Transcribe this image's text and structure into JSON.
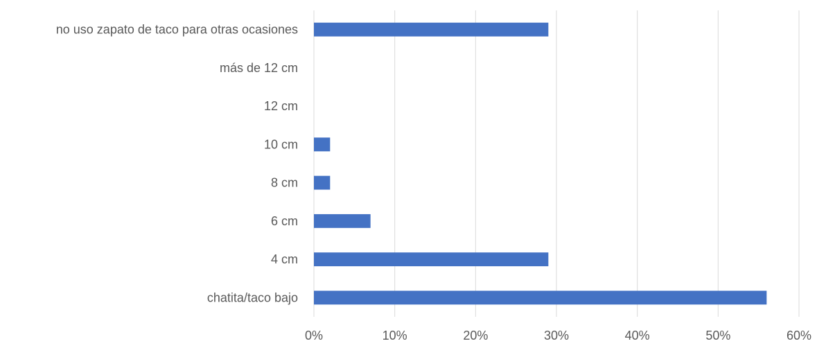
{
  "colors": {
    "bar": "#4472C4",
    "grid": "#D9D9D9",
    "text": "#595959",
    "background": "#FFFFFF"
  },
  "chart_data": {
    "type": "bar",
    "orientation": "horizontal",
    "categories": [
      "chatita/taco bajo",
      "4 cm",
      "6 cm",
      "8 cm",
      "10 cm",
      "12 cm",
      "más de 12 cm",
      "no uso zapato de taco para otras ocasiones"
    ],
    "values": [
      56,
      29,
      7,
      2,
      2,
      0,
      0,
      29
    ],
    "value_unit": "%",
    "xlim": [
      0,
      60
    ],
    "xticks": [
      0,
      10,
      20,
      30,
      40,
      50,
      60
    ],
    "xtick_labels": [
      "0%",
      "10%",
      "20%",
      "30%",
      "40%",
      "50%",
      "60%"
    ],
    "title": "",
    "xlabel": "",
    "ylabel": "",
    "grid": "vertical",
    "legend": "none"
  }
}
